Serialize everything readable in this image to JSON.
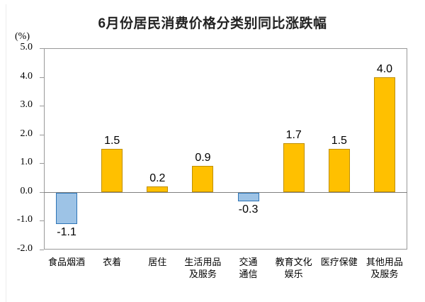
{
  "page": {
    "background": "#ffffff"
  },
  "chart_data": {
    "type": "bar",
    "title": "6月份居民消费价格分类别同比涨跌幅",
    "unit_label": "(%)",
    "categories": [
      [
        "食品烟酒"
      ],
      [
        "衣着"
      ],
      [
        "居住"
      ],
      [
        "生活用品",
        "及服务"
      ],
      [
        "交通",
        "通信"
      ],
      [
        "教育文化",
        "娱乐"
      ],
      [
        "医疗保健"
      ],
      [
        "其他用品",
        "及服务"
      ]
    ],
    "values": [
      -1.1,
      1.5,
      0.2,
      0.9,
      -0.3,
      1.7,
      1.5,
      4.0
    ],
    "value_labels": [
      "-1.1",
      "1.5",
      "0.2",
      "0.9",
      "-0.3",
      "1.7",
      "1.5",
      "4.0"
    ],
    "ylim": [
      -2.0,
      5.0
    ],
    "ytick_labels": [
      "5.0",
      "4.0",
      "3.0",
      "2.0",
      "1.0",
      "0.0",
      "-1.0",
      "-2.0"
    ],
    "grid": "none",
    "legend": "none",
    "baseline": 0.0,
    "colors": {
      "positive_fill": "#FFC000",
      "positive_border": "#BF8F00",
      "negative_fill": "#9DC3E6",
      "negative_border": "#2E75B6",
      "frame": "#999999",
      "zero_line": "#808080",
      "title_text": "#222222",
      "label_text": "#000000"
    }
  }
}
